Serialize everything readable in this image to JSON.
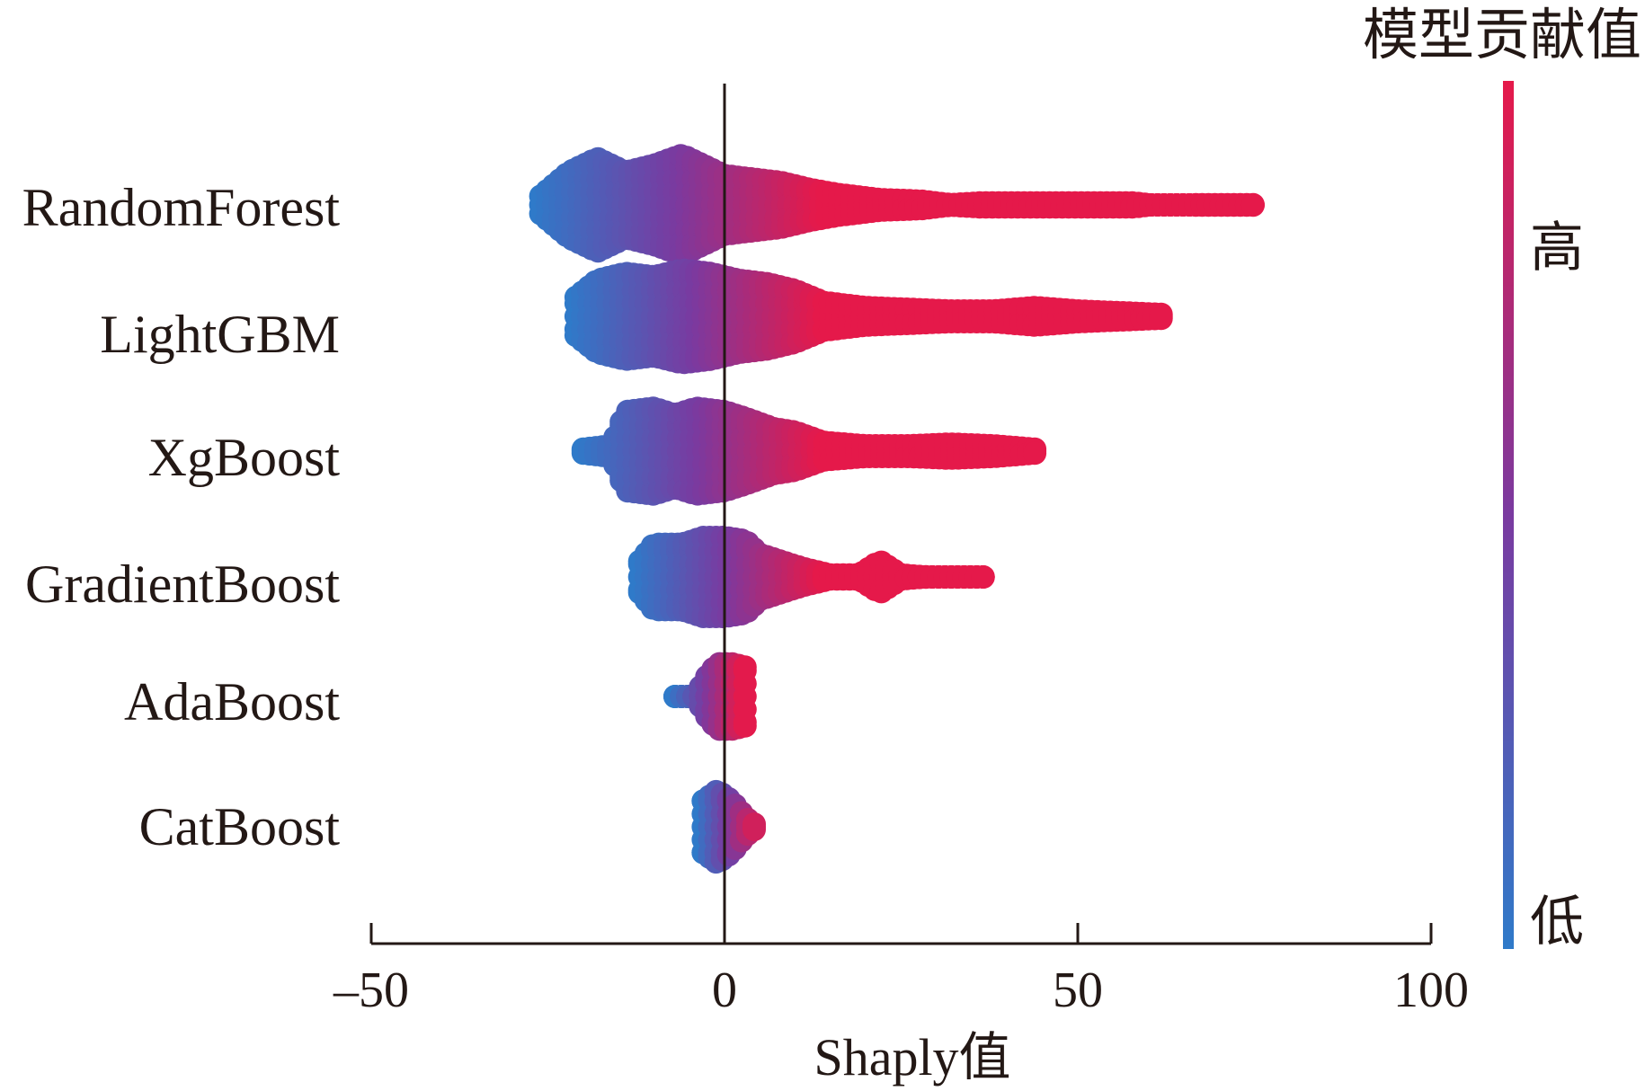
{
  "chart_data": {
    "type": "scatter",
    "subtype": "beeswarm",
    "title": "",
    "xlabel": "Shaply值",
    "ylabel": "",
    "xlim": [
      -50,
      100
    ],
    "xticks": [
      -50,
      0,
      50,
      100
    ],
    "xtick_labels": [
      "–50",
      "0",
      "50",
      "100"
    ],
    "zero_line": 0,
    "grid": false,
    "colorbar": {
      "title": "模型贡献值",
      "high_label": "高",
      "low_label": "低",
      "high_color": "#e5194a",
      "mid_color": "#7a3aa0",
      "low_color": "#2f7ac9",
      "placement": "right"
    },
    "series": [
      {
        "name": "RandomForest",
        "min": -26,
        "max": 75,
        "profile": [
          [
            -26,
            1.2
          ],
          [
            -22,
            2.6
          ],
          [
            -18,
            3.4
          ],
          [
            -14,
            2.6
          ],
          [
            -10,
            3.0
          ],
          [
            -6,
            3.6
          ],
          [
            -3,
            3.0
          ],
          [
            0,
            2.4
          ],
          [
            4,
            2.2
          ],
          [
            8,
            2.0
          ],
          [
            12,
            1.6
          ],
          [
            16,
            1.3
          ],
          [
            22,
            1.0
          ],
          [
            28,
            0.9
          ],
          [
            32,
            0.7
          ],
          [
            36,
            0.8
          ],
          [
            44,
            0.8
          ],
          [
            52,
            0.8
          ],
          [
            58,
            0.8
          ],
          [
            62,
            0.6
          ],
          [
            67,
            0.7
          ],
          [
            75,
            0.7
          ]
        ]
      },
      {
        "name": "LightGBM",
        "min": -21,
        "max": 62,
        "profile": [
          [
            -21,
            1.8
          ],
          [
            -18,
            2.8
          ],
          [
            -14,
            3.2
          ],
          [
            -10,
            3.0
          ],
          [
            -6,
            3.4
          ],
          [
            -2,
            3.2
          ],
          [
            2,
            2.8
          ],
          [
            6,
            2.6
          ],
          [
            10,
            2.2
          ],
          [
            14,
            1.5
          ],
          [
            20,
            1.2
          ],
          [
            26,
            1.1
          ],
          [
            32,
            1.0
          ],
          [
            38,
            1.0
          ],
          [
            44,
            1.2
          ],
          [
            50,
            1.0
          ],
          [
            56,
            0.9
          ],
          [
            62,
            0.8
          ]
        ]
      },
      {
        "name": "XgBoost",
        "min": -20,
        "max": 44,
        "profile": [
          [
            -20,
            0.8
          ],
          [
            -16,
            1.0
          ],
          [
            -14,
            3.0
          ],
          [
            -10,
            3.2
          ],
          [
            -7,
            2.8
          ],
          [
            -4,
            3.2
          ],
          [
            0,
            3.0
          ],
          [
            3,
            2.6
          ],
          [
            7,
            2.0
          ],
          [
            10,
            1.8
          ],
          [
            14,
            1.2
          ],
          [
            20,
            1.0
          ],
          [
            26,
            1.0
          ],
          [
            32,
            1.1
          ],
          [
            38,
            1.0
          ],
          [
            44,
            0.8
          ]
        ]
      },
      {
        "name": "GradientBoost",
        "min": -12,
        "max": 37,
        "profile": [
          [
            -12,
            1.6
          ],
          [
            -10,
            2.6
          ],
          [
            -6,
            2.6
          ],
          [
            -3,
            3.0
          ],
          [
            0,
            3.0
          ],
          [
            3,
            2.8
          ],
          [
            5,
            2.0
          ],
          [
            8,
            1.6
          ],
          [
            11,
            1.2
          ],
          [
            15,
            0.8
          ],
          [
            19,
            0.8
          ],
          [
            22,
            1.6
          ],
          [
            25,
            0.8
          ],
          [
            28,
            0.7
          ],
          [
            37,
            0.6
          ]
        ]
      },
      {
        "name": "AdaBoost",
        "min": -7,
        "max": 3,
        "profile": [
          [
            -7,
            0.6
          ],
          [
            -4,
            0.7
          ],
          [
            -3,
            1.6
          ],
          [
            -1,
            2.6
          ],
          [
            1,
            2.6
          ],
          [
            3,
            2.4
          ]
        ]
      },
      {
        "name": "CatBoost",
        "min": -3,
        "max": 5,
        "profile": [
          [
            -3,
            2.2
          ],
          [
            -1,
            2.8
          ],
          [
            1,
            2.2
          ],
          [
            3,
            1.2
          ],
          [
            5,
            0.6
          ]
        ]
      }
    ]
  }
}
